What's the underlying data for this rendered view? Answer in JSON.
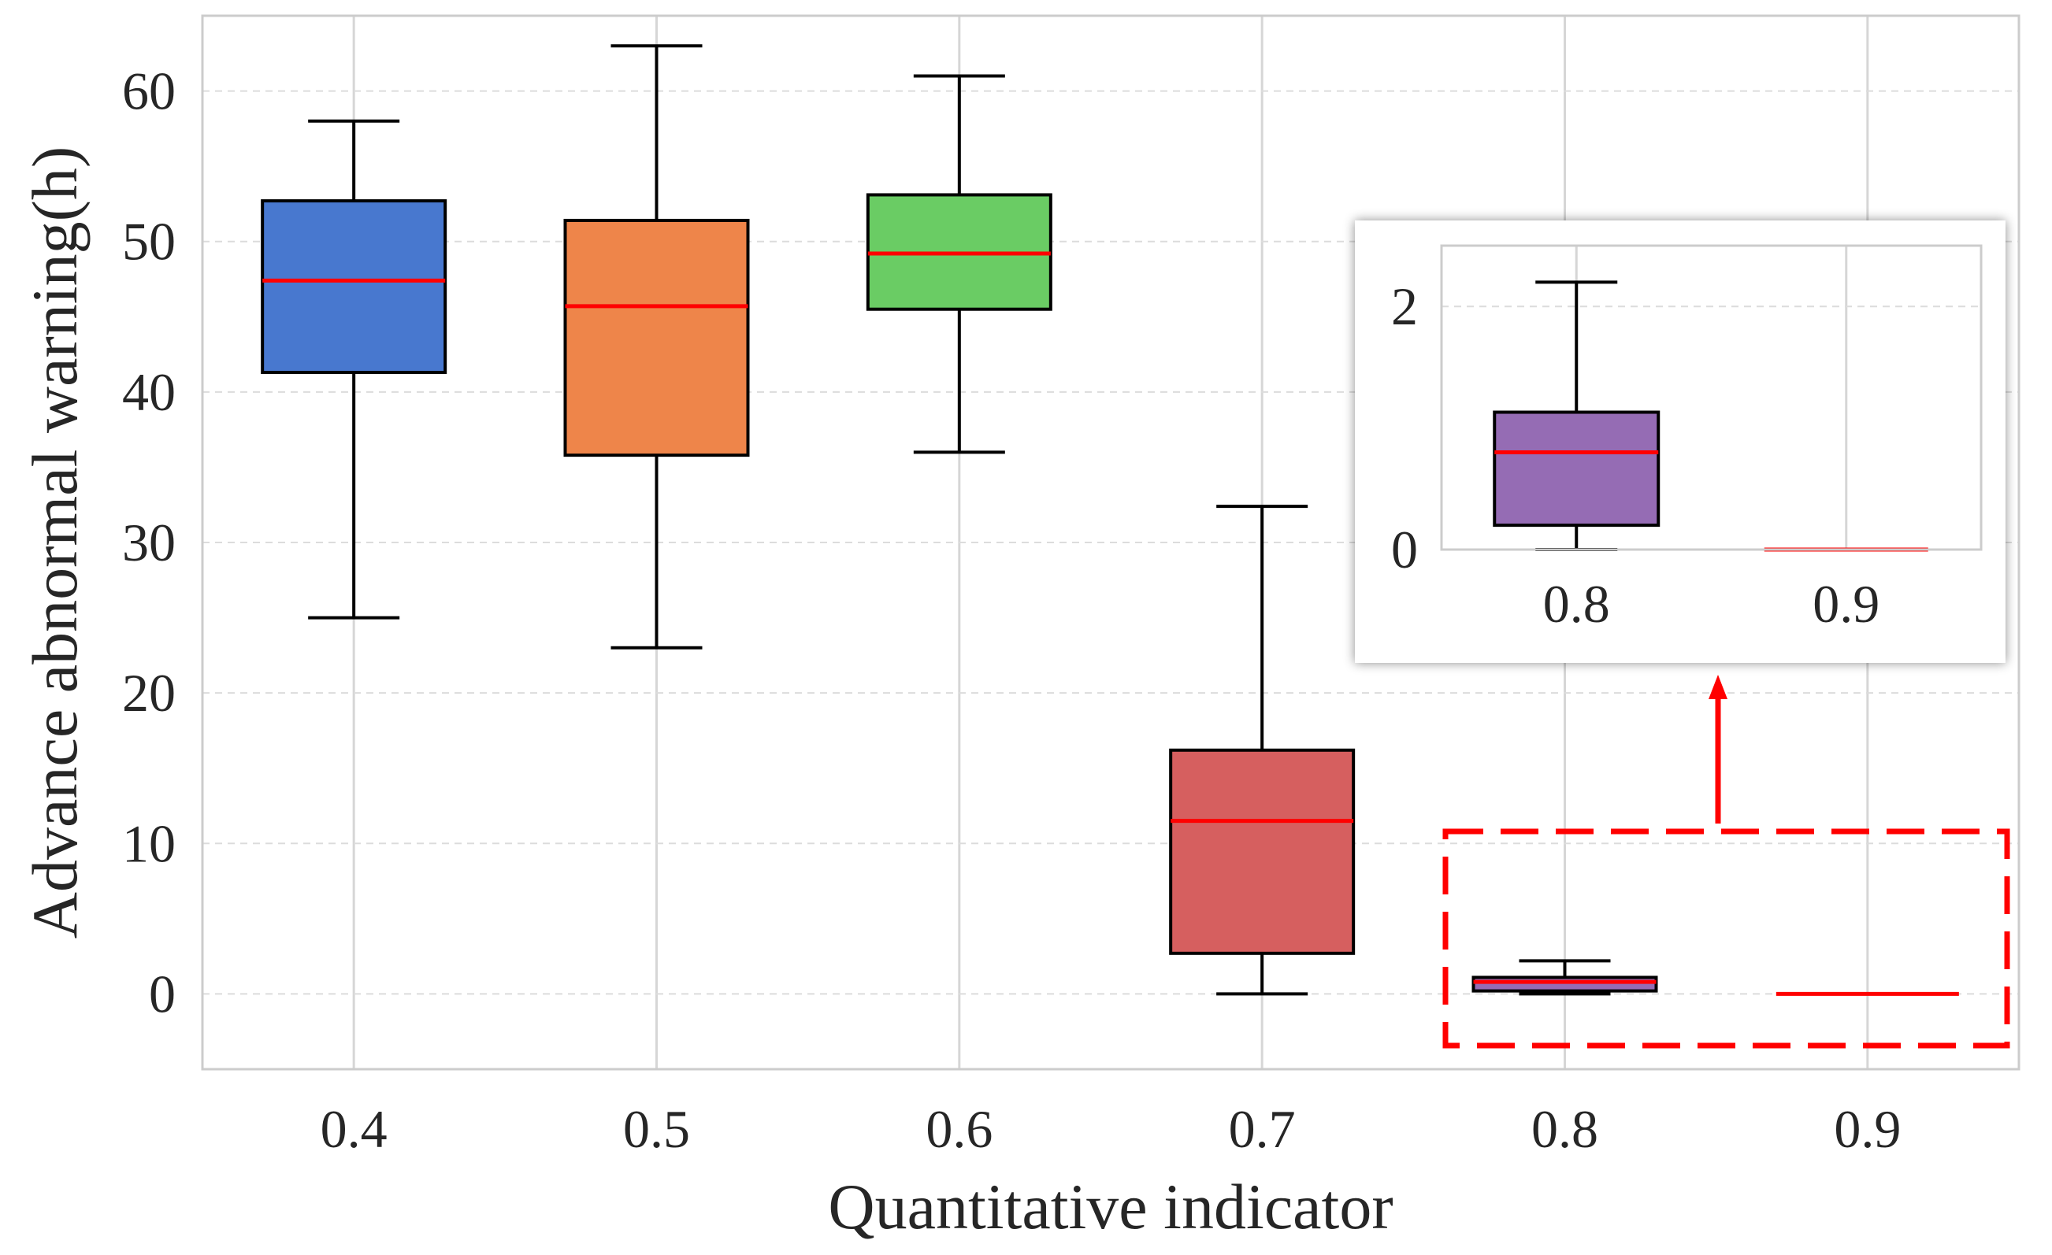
{
  "chart_data": [
    {
      "type": "box",
      "name": "main",
      "xlabel": "Quantitative indicator",
      "ylabel": "Advance abnormal warning(h)",
      "categories": [
        "0.4",
        "0.5",
        "0.6",
        "0.7",
        "0.8",
        "0.9"
      ],
      "ylim": [
        -5,
        65
      ],
      "yticks": [
        0,
        10,
        20,
        30,
        40,
        50,
        60
      ],
      "ytick_labels": [
        "0",
        "10",
        "20",
        "30",
        "40",
        "50",
        "60"
      ],
      "grid": true,
      "median_color": "#ff0000",
      "boxes": [
        {
          "category": "0.4",
          "whislo": 25.0,
          "q1": 41.3,
          "med": 47.4,
          "q3": 52.7,
          "whishi": 58.0,
          "color": "#4878cf"
        },
        {
          "category": "0.5",
          "whislo": 23.0,
          "q1": 35.8,
          "med": 45.7,
          "q3": 51.4,
          "whishi": 63.0,
          "color": "#ee854a"
        },
        {
          "category": "0.6",
          "whislo": 36.0,
          "q1": 45.5,
          "med": 49.2,
          "q3": 53.1,
          "whishi": 61.0,
          "color": "#6acc64"
        },
        {
          "category": "0.7",
          "whislo": 0.0,
          "q1": 2.7,
          "med": 11.5,
          "q3": 16.2,
          "whishi": 32.4,
          "color": "#d65f5f"
        },
        {
          "category": "0.8",
          "whislo": 0.0,
          "q1": 0.2,
          "med": 0.8,
          "q3": 1.1,
          "whishi": 2.2,
          "color": "#956cb4"
        },
        {
          "category": "0.9",
          "whislo": 0.0,
          "q1": 0.0,
          "med": 0.0,
          "q3": 0.0,
          "whishi": 0.0,
          "color": "#8c613c"
        }
      ],
      "annotation": {
        "type": "dashed-rectangle",
        "target": "0.8–0.9 region",
        "arrow": "points to inset",
        "color": "#ff0000"
      }
    },
    {
      "type": "box",
      "name": "inset",
      "categories": [
        "0.8",
        "0.9"
      ],
      "ylim": [
        0,
        2.5
      ],
      "yticks": [
        0,
        2
      ],
      "ytick_labels": [
        "0",
        "2"
      ],
      "grid": true,
      "boxes": [
        {
          "category": "0.8",
          "whislo": 0.0,
          "q1": 0.2,
          "med": 0.8,
          "q3": 1.13,
          "whishi": 2.2,
          "color": "#956cb4"
        },
        {
          "category": "0.9",
          "whislo": 0.0,
          "q1": 0.0,
          "med": 0.0,
          "q3": 0.0,
          "whishi": 0.0,
          "color": "#8c613c"
        }
      ]
    }
  ]
}
